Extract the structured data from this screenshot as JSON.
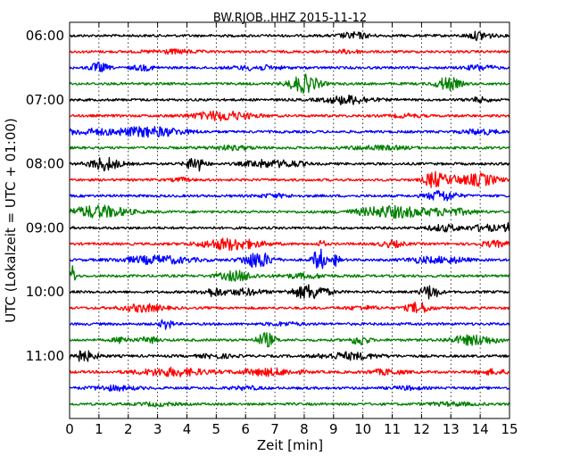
{
  "chart_data": {
    "type": "line",
    "title": "BW.RJOB..HHZ 2015-11-12",
    "xlabel": "Zeit  [min]",
    "ylabel": "UTC (Lokalzeit = UTC + 01:00)",
    "xlim": [
      0,
      15
    ],
    "x_ticks": [
      "0",
      "1",
      "2",
      "3",
      "4",
      "5",
      "6",
      "7",
      "8",
      "9",
      "10",
      "11",
      "12",
      "13",
      "14",
      "15"
    ],
    "y_ticks": [
      {
        "label": "06:00",
        "row": 0
      },
      {
        "label": "07:00",
        "row": 4
      },
      {
        "label": "08:00",
        "row": 8
      },
      {
        "label": "09:00",
        "row": 12
      },
      {
        "label": "10:00",
        "row": 16
      },
      {
        "label": "11:00",
        "row": 20
      }
    ],
    "grid": true,
    "trace_colors": [
      "#000000",
      "#ff0000",
      "#0000ff",
      "#008000"
    ],
    "traces": [
      {
        "start": "06:00",
        "events": [
          [
            9.7,
            0.5,
            1.0
          ],
          [
            14.0,
            0.4,
            1.4
          ]
        ]
      },
      {
        "start": "06:15",
        "events": [
          [
            3.5,
            0.8,
            0.6
          ],
          [
            9.5,
            0.5,
            0.5
          ]
        ]
      },
      {
        "start": "06:30",
        "events": [
          [
            1.0,
            0.3,
            1.6
          ],
          [
            2.5,
            0.4,
            0.8
          ],
          [
            6.4,
            0.8,
            0.7
          ],
          [
            14.0,
            0.5,
            0.8
          ]
        ]
      },
      {
        "start": "06:45",
        "events": [
          [
            8.0,
            0.5,
            3.0
          ],
          [
            12.9,
            0.4,
            2.2
          ]
        ]
      },
      {
        "start": "07:00",
        "events": [
          [
            9.5,
            0.8,
            1.4
          ],
          [
            14.0,
            0.4,
            0.7
          ]
        ]
      },
      {
        "start": "07:15",
        "events": [
          [
            5.2,
            1.0,
            1.5
          ],
          [
            11.5,
            0.5,
            0.5
          ]
        ]
      },
      {
        "start": "07:30",
        "events": [
          [
            2.7,
            1.2,
            1.6
          ],
          [
            0.5,
            1.0,
            0.8
          ],
          [
            14.0,
            0.6,
            0.8
          ]
        ]
      },
      {
        "start": "07:45",
        "events": [
          [
            10.5,
            1.0,
            0.6
          ],
          [
            5.5,
            0.8,
            0.6
          ]
        ]
      },
      {
        "start": "08:00",
        "events": [
          [
            1.2,
            0.5,
            2.2
          ],
          [
            4.3,
            0.3,
            2.5
          ],
          [
            6.5,
            0.6,
            1.1
          ],
          [
            7.5,
            0.5,
            1.0
          ]
        ]
      },
      {
        "start": "08:15",
        "events": [
          [
            12.4,
            0.3,
            2.6
          ],
          [
            14.0,
            0.6,
            2.0
          ],
          [
            13.0,
            0.4,
            1.2
          ],
          [
            3.8,
            0.3,
            0.6
          ]
        ]
      },
      {
        "start": "08:30",
        "events": [
          [
            12.7,
            0.5,
            1.8
          ],
          [
            7.0,
            0.6,
            0.5
          ]
        ]
      },
      {
        "start": "08:45",
        "events": [
          [
            1.0,
            1.0,
            2.0
          ],
          [
            11.0,
            1.2,
            1.9
          ],
          [
            13.0,
            0.8,
            1.0
          ]
        ]
      },
      {
        "start": "09:00",
        "events": [
          [
            12.8,
            0.6,
            1.0
          ],
          [
            14.2,
            0.5,
            1.0
          ],
          [
            15.0,
            0.2,
            1.5
          ]
        ]
      },
      {
        "start": "09:15",
        "events": [
          [
            5.5,
            1.0,
            1.9
          ],
          [
            8.6,
            0.1,
            1.4
          ],
          [
            11.0,
            0.4,
            1.0
          ],
          [
            14.5,
            0.5,
            0.9
          ]
        ]
      },
      {
        "start": "09:30",
        "events": [
          [
            3.0,
            1.2,
            1.3
          ],
          [
            6.4,
            0.5,
            2.7
          ],
          [
            8.5,
            0.2,
            4.0
          ],
          [
            9.1,
            0.1,
            2.5
          ],
          [
            12.0,
            0.6,
            0.8
          ],
          [
            13.0,
            0.6,
            0.9
          ]
        ]
      },
      {
        "start": "09:45",
        "events": [
          [
            0.1,
            0.1,
            3.5
          ],
          [
            5.7,
            0.6,
            1.6
          ],
          [
            8.0,
            0.8,
            0.7
          ]
        ]
      },
      {
        "start": "10:00",
        "events": [
          [
            8.2,
            0.6,
            2.4
          ],
          [
            12.3,
            0.3,
            2.3
          ],
          [
            4.9,
            0.4,
            1.3
          ],
          [
            6.0,
            0.6,
            1.0
          ]
        ]
      },
      {
        "start": "10:15",
        "events": [
          [
            11.9,
            0.4,
            1.8
          ],
          [
            2.5,
            0.7,
            1.2
          ],
          [
            10.0,
            0.6,
            0.5
          ]
        ]
      },
      {
        "start": "10:30",
        "events": [
          [
            3.3,
            0.2,
            1.8
          ],
          [
            7.3,
            0.6,
            0.5
          ]
        ]
      },
      {
        "start": "10:45",
        "events": [
          [
            6.7,
            0.3,
            2.4
          ],
          [
            9.9,
            0.3,
            1.6
          ],
          [
            13.8,
            0.8,
            1.6
          ],
          [
            1.8,
            0.3,
            1.0
          ],
          [
            2.7,
            0.3,
            1.0
          ]
        ]
      },
      {
        "start": "11:00",
        "events": [
          [
            0.4,
            0.5,
            1.8
          ],
          [
            9.5,
            1.0,
            1.1
          ],
          [
            5.0,
            0.6,
            0.6
          ]
        ]
      },
      {
        "start": "11:15",
        "events": [
          [
            3.5,
            1.2,
            1.3
          ],
          [
            6.8,
            1.0,
            1.1
          ],
          [
            10.8,
            0.6,
            0.8
          ],
          [
            14.4,
            0.5,
            0.8
          ]
        ]
      },
      {
        "start": "11:30",
        "events": [
          [
            1.5,
            0.8,
            0.7
          ],
          [
            6.0,
            0.5,
            0.5
          ],
          [
            11.5,
            0.5,
            0.5
          ]
        ]
      },
      {
        "start": "11:45",
        "events": [
          [
            13.0,
            0.8,
            0.5
          ],
          [
            3.0,
            0.6,
            0.5
          ]
        ]
      }
    ]
  }
}
